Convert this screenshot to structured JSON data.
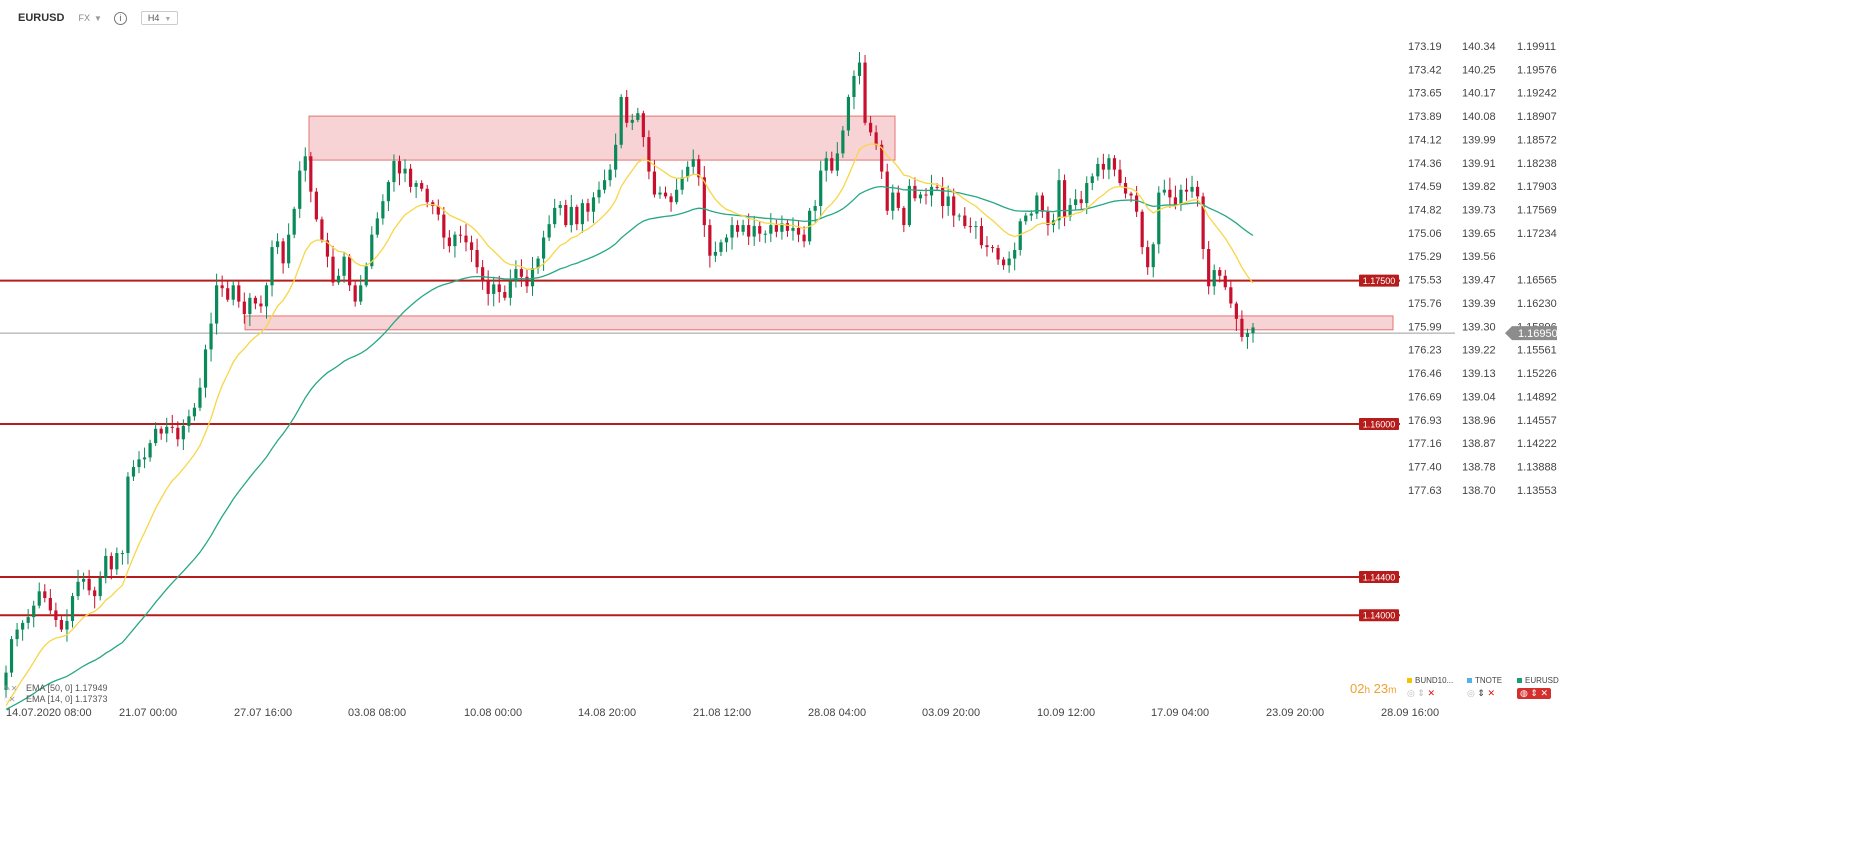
{
  "header": {
    "symbol": "EURUSD",
    "market": "FX",
    "timeframe": "H4"
  },
  "colors": {
    "up": "#0a8a5a",
    "down": "#c8102e",
    "ema50": "#26a884",
    "ema14": "#f7d646",
    "hline": "#b71c1c",
    "zone_fill": "#f8d3d6",
    "zone_stroke": "#e57373",
    "price_badge": "#8c8c8c"
  },
  "chart_data": {
    "type": "candlestick",
    "y_range": [
      1.13218,
      1.20246
    ],
    "price_axis_ticks": [
      "1.19911",
      "1.19576",
      "1.19242",
      "1.18907",
      "1.18572",
      "1.18238",
      "1.17903",
      "1.17569",
      "1.17234",
      "1.16565",
      "1.16230",
      "1.15896",
      "1.15561",
      "1.15226",
      "1.14892",
      "1.14557",
      "1.14222",
      "1.13888",
      "1.13553"
    ],
    "secondary_axis_1": [
      "140.34",
      "140.25",
      "140.17",
      "140.08",
      "139.99",
      "139.91",
      "139.82",
      "139.73",
      "139.65",
      "139.56",
      "139.47",
      "139.39",
      "139.30",
      "139.22",
      "139.13",
      "139.04",
      "138.96",
      "138.87",
      "138.78",
      "138.70"
    ],
    "secondary_axis_2": [
      "173.19",
      "173.42",
      "173.65",
      "173.89",
      "174.12",
      "174.36",
      "174.59",
      "174.82",
      "175.06",
      "175.29",
      "175.53",
      "175.76",
      "175.99",
      "176.23",
      "176.46",
      "176.69",
      "176.93",
      "177.16",
      "177.40",
      "177.63"
    ],
    "x_ticks": [
      "14.07.2020  08:00",
      "21.07  00:00",
      "27.07  16:00",
      "03.08  08:00",
      "10.08  00:00",
      "14.08  20:00",
      "21.08  12:00",
      "28.08  04:00",
      "03.09  20:00",
      "10.09  12:00",
      "17.09  04:00",
      "23.09  20:00",
      "28.09  16:00"
    ],
    "current_price": "1.16950",
    "horizontal_levels": [
      "1.17500",
      "1.16000",
      "1.14400",
      "1.14000"
    ],
    "zones": [
      {
        "from": 1.1876,
        "to": 1.1922
      },
      {
        "from": 1.16985,
        "to": 1.1713
      }
    ],
    "candles_close": [
      1.134,
      1.1375,
      1.1385,
      1.1392,
      1.1398,
      1.141,
      1.1425,
      1.1418,
      1.1405,
      1.1395,
      1.1385,
      1.1394,
      1.142,
      1.1435,
      1.1438,
      1.1426,
      1.142,
      1.1439,
      1.1462,
      1.1448,
      1.1465,
      1.1465,
      1.1545,
      1.1555,
      1.1563,
      1.1565,
      1.158,
      1.1595,
      1.159,
      1.1597,
      1.1596,
      1.1584,
      1.1598,
      1.1608,
      1.1617,
      1.1638,
      1.1678,
      1.1705,
      1.1745,
      1.1742,
      1.173,
      1.1745,
      1.1728,
      1.1715,
      1.1732,
      1.1726,
      1.1723,
      1.1745,
      1.1785,
      1.1791,
      1.1768,
      1.1798,
      1.1825,
      1.1865,
      1.188,
      1.1843,
      1.1814,
      1.1792,
      1.1775,
      1.1748,
      1.1755,
      1.1775,
      1.1745,
      1.1728,
      1.1745,
      1.1765,
      1.1798,
      1.1815,
      1.1833,
      1.1853,
      1.1875,
      1.1862,
      1.1867,
      1.1848,
      1.1852,
      1.1846,
      1.1832,
      1.1828,
      1.1819,
      1.1795,
      1.1786,
      1.1798,
      1.1797,
      1.179,
      1.1782,
      1.1764,
      1.175,
      1.1736,
      1.1746,
      1.1738,
      1.1732,
      1.1749,
      1.1762,
      1.1754,
      1.1744,
      1.1763,
      1.1773,
      1.1795,
      1.1809,
      1.1826,
      1.1829,
      1.1808,
      1.1827,
      1.1809,
      1.1831,
      1.1822,
      1.1837,
      1.1845,
      1.1855,
      1.1866,
      1.1892,
      1.1942,
      1.1915,
      1.1918,
      1.1925,
      1.19,
      1.1864,
      1.184,
      1.1842,
      1.1838,
      1.1832,
      1.1845,
      1.1858,
      1.1869,
      1.1877,
      1.1858,
      1.1808,
      1.1776,
      1.178,
      1.179,
      1.1795,
      1.1808,
      1.1801,
      1.1808,
      1.1796,
      1.1807,
      1.1799,
      1.1799,
      1.1808,
      1.1801,
      1.181,
      1.1802,
      1.1805,
      1.1798,
      1.1791,
      1.1823,
      1.1828,
      1.1865,
      1.1878,
      1.1865,
      1.1883,
      1.1907,
      1.1942,
      1.1964,
      1.1978,
      1.1915,
      1.1905,
      1.1892,
      1.1864,
      1.1823,
      1.1842,
      1.1826,
      1.1808,
      1.1849,
      1.1836,
      1.184,
      1.1839,
      1.1848,
      1.1847,
      1.1828,
      1.1838,
      1.1818,
      1.1818,
      1.1807,
      1.1806,
      1.1807,
      1.1787,
      1.1785,
      1.1784,
      1.1772,
      1.1766,
      1.1773,
      1.1782,
      1.1812,
      1.1818,
      1.182,
      1.1839,
      1.1822,
      1.1808,
      1.1813,
      1.1855,
      1.1817,
      1.1829,
      1.1835,
      1.1831,
      1.1852,
      1.1859,
      1.1872,
      1.1866,
      1.1878,
      1.1866,
      1.1852,
      1.1841,
      1.1839,
      1.1822,
      1.1785,
      1.1764,
      1.1788,
      1.1842,
      1.1845,
      1.1837,
      1.1829,
      1.1845,
      1.1843,
      1.1848,
      1.1838,
      1.1783,
      1.1744,
      1.1761,
      1.1755,
      1.1743,
      1.1726,
      1.171,
      1.1691,
      1.1695,
      1.1701
    ]
  },
  "legend": {
    "ema50": "EMA  [50, 0]  1.17949",
    "ema14": "EMA  [14, 0]  1.17373"
  },
  "timer": {
    "h": "02",
    "h_unit": "h",
    "m": "23",
    "m_unit": "m"
  },
  "instruments": [
    {
      "name": "BUND10...",
      "color": "#f5c400"
    },
    {
      "name": "TNOTE",
      "color": "#4fb3e8"
    },
    {
      "name": "EURUSD",
      "color": "#1b9e6e"
    }
  ]
}
